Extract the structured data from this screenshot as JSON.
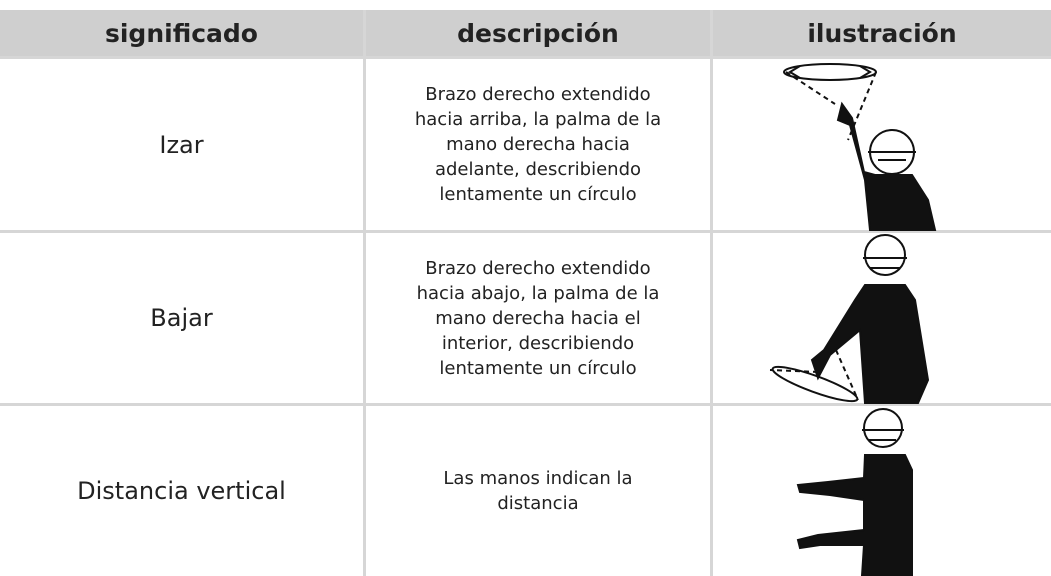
{
  "header": {
    "columns": [
      "significado",
      "descripción",
      "ilustración"
    ]
  },
  "table": {
    "rows": [
      [
        "Izar",
        "Brazo derecho extendido hacia arriba, la palma de la mano derecha hacia adelante, describiendo lentamente un círculo"
      ],
      [
        "Bajar",
        "Brazo derecho extendido hacia abajo, la palma de la mano derecha hacia el interior, describiendo lentamente un círculo"
      ],
      [
        "Distancia vertical",
        "Las manos indican la distancia"
      ]
    ]
  }
}
